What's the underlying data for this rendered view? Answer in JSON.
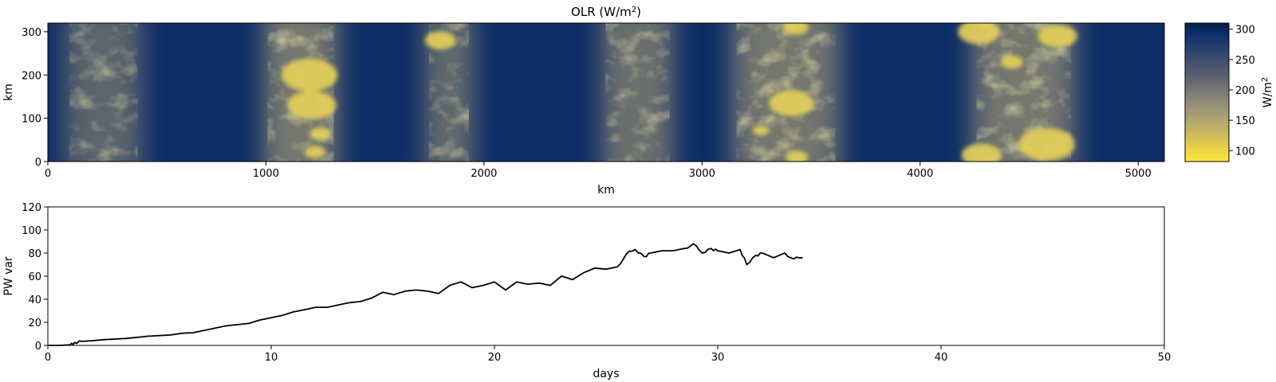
{
  "chart_data": [
    {
      "type": "heatmap",
      "title_main": "OLR (W/m",
      "title_sup": "2",
      "title_close": ")",
      "xlabel": "km",
      "ylabel": "km",
      "xlim": [
        0,
        5120
      ],
      "ylim": [
        0,
        320
      ],
      "x_ticks": [
        "0",
        "1000",
        "2000",
        "3000",
        "4000",
        "5000"
      ],
      "x_tick_values": [
        0,
        1000,
        2000,
        3000,
        4000,
        5000
      ],
      "y_ticks": [
        "0",
        "100",
        "200",
        "300"
      ],
      "y_tick_values": [
        0,
        100,
        200,
        300
      ],
      "colorbar": {
        "label_main": "W/m",
        "label_sup": "2",
        "range": [
          82,
          310
        ],
        "ticks": [
          "100",
          "150",
          "200",
          "250",
          "300"
        ],
        "tick_values": [
          100,
          150,
          200,
          250,
          300
        ],
        "colormap": "cividis",
        "colors": [
          "#fee838",
          "#d0bd5e",
          "#a69d75",
          "#7c7b78",
          "#575c6d",
          "#303f6f",
          "#0b2d6c",
          "#00204d"
        ]
      },
      "features": {
        "description_bands_km": [
          {
            "x": [
              70,
              440
            ],
            "intensity": 0.45
          },
          {
            "x": [
              980,
              1340
            ],
            "intensity": 0.8
          },
          {
            "x": [
              1720,
              1960
            ],
            "intensity": 0.55
          },
          {
            "x": [
              2530,
              2880
            ],
            "intensity": 0.65
          },
          {
            "x": [
              3130,
              3640
            ],
            "intensity": 0.8
          },
          {
            "x": [
              4230,
              4720
            ],
            "intensity": 0.8
          }
        ],
        "convective_cells": [
          {
            "x": 1200,
            "y": 200,
            "r": 40
          },
          {
            "x": 1210,
            "y": 130,
            "r": 35
          },
          {
            "x": 1800,
            "y": 280,
            "r": 22
          },
          {
            "x": 1225,
            "y": 22,
            "r": 15
          },
          {
            "x": 1250,
            "y": 65,
            "r": 15
          },
          {
            "x": 3410,
            "y": 135,
            "r": 32
          },
          {
            "x": 3430,
            "y": 310,
            "r": 18
          },
          {
            "x": 3270,
            "y": 72,
            "r": 12
          },
          {
            "x": 3435,
            "y": 10,
            "r": 16
          },
          {
            "x": 4270,
            "y": 300,
            "r": 30
          },
          {
            "x": 4420,
            "y": 230,
            "r": 16
          },
          {
            "x": 4580,
            "y": 40,
            "r": 40
          },
          {
            "x": 4280,
            "y": 15,
            "r": 28
          },
          {
            "x": 4630,
            "y": 290,
            "r": 28
          }
        ]
      }
    },
    {
      "type": "line",
      "xlabel": "days",
      "ylabel": "PW var",
      "xlim": [
        0,
        50
      ],
      "ylim": [
        0,
        120
      ],
      "x_ticks": [
        "0",
        "10",
        "20",
        "30",
        "40",
        "50"
      ],
      "x_tick_values": [
        0,
        10,
        20,
        30,
        40,
        50
      ],
      "y_ticks": [
        "0",
        "20",
        "40",
        "60",
        "80",
        "100",
        "120"
      ],
      "y_tick_values": [
        0,
        20,
        40,
        60,
        80,
        100,
        120
      ],
      "line_color": "#000000",
      "series": [
        {
          "x": [
            0,
            0.5,
            1.0,
            1.2,
            1.5,
            2.0,
            2.5,
            3.0,
            3.5,
            4.0,
            4.5,
            5.0,
            5.5,
            6.0,
            6.5,
            7.0,
            7.5,
            8.0,
            8.5,
            9.0,
            9.5,
            10.0,
            10.5,
            11.0,
            11.5,
            12.0,
            12.5,
            13.0,
            13.5,
            14.0,
            14.5,
            15.0,
            15.5,
            16.0,
            16.5,
            17.0,
            17.5,
            18.0,
            18.5,
            19.0,
            19.5,
            20.0,
            20.5,
            21.0,
            21.5,
            22.0,
            22.5,
            23.0,
            23.5,
            24.0,
            24.5,
            25.0,
            25.5,
            25.9,
            26.3,
            26.7,
            27.0,
            27.5,
            28.0,
            28.5,
            28.9,
            29.3,
            29.7,
            30.0,
            30.5,
            31.0,
            31.3,
            31.7,
            32.0,
            32.5,
            33.0,
            33.4,
            33.8
          ],
          "y": [
            0,
            0,
            0.5,
            2.5,
            3.5,
            4,
            5,
            5.5,
            6,
            7,
            8,
            8.5,
            9,
            10.5,
            11,
            13,
            15,
            17,
            18,
            19,
            22,
            24,
            26,
            29,
            31,
            33,
            33,
            35,
            37,
            38,
            41,
            46,
            44,
            47,
            48,
            47,
            45,
            52,
            55,
            50,
            52,
            55,
            48,
            55,
            53,
            54,
            52,
            60,
            57,
            63,
            67,
            66,
            68,
            79,
            83,
            77,
            80,
            82,
            82,
            84,
            88,
            80,
            84,
            82,
            80,
            83,
            70,
            78,
            80,
            76,
            80,
            75,
            76
          ]
        }
      ]
    }
  ]
}
